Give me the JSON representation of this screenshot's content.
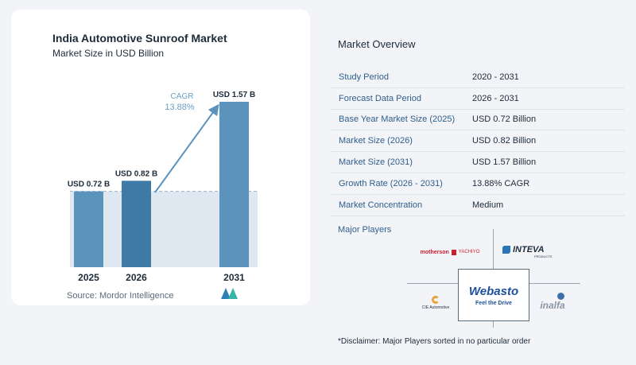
{
  "chart": {
    "title": "India Automotive Sunroof Market",
    "subtitle": "Market Size in USD Billion",
    "source": "Source:  Mordor Intelligence",
    "cagr_label": "CAGR",
    "cagr_value": "13.88%"
  },
  "chart_data": {
    "type": "bar",
    "title": "India Automotive Sunroof Market",
    "subtitle": "Market Size in USD Billion",
    "categories": [
      "2025",
      "2026",
      "2031"
    ],
    "values": [
      0.72,
      0.82,
      1.57
    ],
    "data_labels": [
      "USD 0.72 B",
      "USD 0.82 B",
      "USD 1.57 B"
    ],
    "ylim": [
      0,
      1.57
    ],
    "grid": false,
    "annotation": {
      "text": "CAGR 13.88%",
      "from": "2026",
      "to": "2031"
    },
    "colors": {
      "bar": "#5b93bc",
      "bar_dark": "#3f79a6",
      "band": "#dfe8f1",
      "arrow": "#5b93bc",
      "cagr_text": "#6a9fc4"
    }
  },
  "overview": {
    "title": "Market Overview",
    "rows": [
      {
        "label": "Study Period",
        "value": "2020 - 2031"
      },
      {
        "label": "Forecast Data Period",
        "value": "2026 - 2031"
      },
      {
        "label": "Base Year Market Size (2025)",
        "value": "USD 0.72 Billion"
      },
      {
        "label": "Market Size (2026)",
        "value": "USD 0.82 Billion"
      },
      {
        "label": "Market Size (2031)",
        "value": "USD 1.57 Billion"
      },
      {
        "label": "Growth Rate (2026 - 2031)",
        "value": "13.88% CAGR"
      },
      {
        "label": "Market Concentration",
        "value": "Medium"
      }
    ]
  },
  "players": {
    "title": "Major Players",
    "logos": {
      "motherson": "motherson",
      "yachiyo": "YACHIYO",
      "inteva": "INTEVA",
      "inteva_sub": "PRODUCTS",
      "webasto": "Webasto",
      "webasto_tag": "Feel the Drive",
      "ci": "CIE Automotive",
      "inalfa": "inalfa"
    },
    "disclaimer": "*Disclaimer: Major Players sorted in no particular order"
  }
}
